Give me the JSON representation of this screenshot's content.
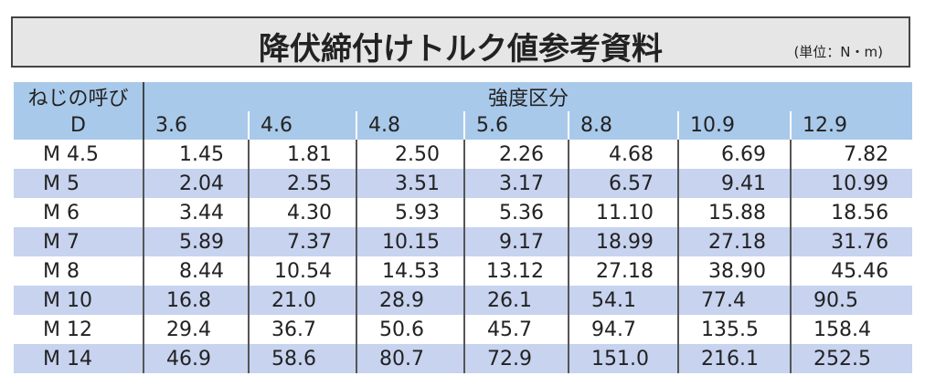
{
  "header": {
    "title": "降伏締付けトルク値参考資料",
    "unit": "(単位：N・m)"
  },
  "table": {
    "corner": [
      "ねじの呼び",
      "D"
    ],
    "group": "強度区分",
    "columns": [
      "3.6",
      "4.6",
      "4.8",
      "5.6",
      "8.8",
      "10.9",
      "12.9"
    ],
    "rows": [
      [
        "M 4.5",
        "1.45",
        "1.81",
        "2.50",
        "2.26",
        "4.68",
        "6.69",
        "7.82"
      ],
      [
        "M 5",
        "2.04",
        "2.55",
        "3.51",
        "3.17",
        "6.57",
        "9.41",
        "10.99"
      ],
      [
        "M 6",
        "3.44",
        "4.30",
        "5.93",
        "5.36",
        "11.10",
        "15.88",
        "18.56"
      ],
      [
        "M 7",
        "5.89",
        "7.37",
        "10.15",
        "9.17",
        "18.99",
        "27.18",
        "31.76"
      ],
      [
        "M 8",
        "8.44",
        "10.54",
        "14.53",
        "13.12",
        "27.18",
        "38.90",
        "45.46"
      ],
      [
        "M 10",
        "16.8",
        "21.0",
        "28.9",
        "26.1",
        "54.1",
        "77.4",
        "90.5"
      ],
      [
        "M 12",
        "29.4",
        "36.7",
        "50.6",
        "45.7",
        "94.7",
        "135.5",
        "158.4"
      ],
      [
        "M 14",
        "46.9",
        "58.6",
        "80.7",
        "72.9",
        "151.0",
        "216.1",
        "252.5"
      ]
    ]
  }
}
